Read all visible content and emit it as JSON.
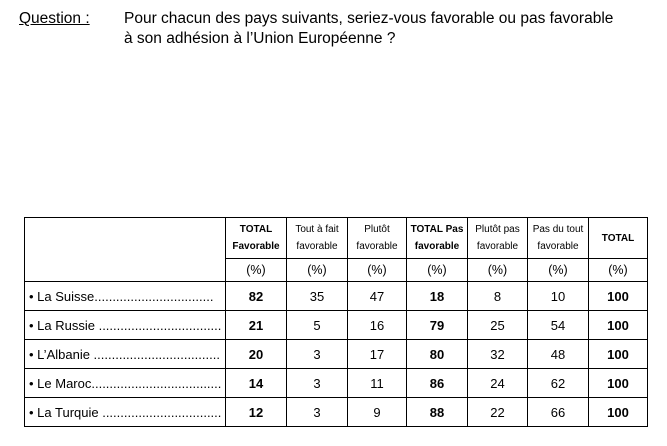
{
  "question": {
    "label": "Question :",
    "line1": "Pour chacun des pays suivants, seriez-vous favorable ou pas favorable",
    "line2": "à son adhésion à l’Union Européenne ?"
  },
  "table": {
    "columns": [
      {
        "line1": "TOTAL",
        "line2": "Favorable",
        "unit": "(%)",
        "bold": true
      },
      {
        "line1": "Tout à fait",
        "line2": "favorable",
        "unit": "(%)",
        "bold": false
      },
      {
        "line1": "Plutôt",
        "line2": "favorable",
        "unit": "(%)",
        "bold": false
      },
      {
        "line1": "TOTAL Pas",
        "line2": "favorable",
        "unit": "(%)",
        "bold": true
      },
      {
        "line1": "Plutôt pas",
        "line2": "favorable",
        "unit": "(%)",
        "bold": false
      },
      {
        "line1": "Pas du tout",
        "line2": "favorable",
        "unit": "(%)",
        "bold": false
      },
      {
        "line1": "TOTAL",
        "line2": "",
        "unit": "(%)",
        "bold": true
      }
    ],
    "rows": [
      {
        "label": "• La Suisse.................................",
        "values": [
          "82",
          "35",
          "47",
          "18",
          "8",
          "10",
          "100"
        ]
      },
      {
        "label": "• La Russie ..................................",
        "values": [
          "21",
          "5",
          "16",
          "79",
          "25",
          "54",
          "100"
        ]
      },
      {
        "label": "• L’Albanie ...................................",
        "values": [
          "20",
          "3",
          "17",
          "80",
          "32",
          "48",
          "100"
        ]
      },
      {
        "label": "• Le Maroc....................................",
        "values": [
          "14",
          "3",
          "11",
          "86",
          "24",
          "62",
          "100"
        ]
      },
      {
        "label": "• La Turquie .................................",
        "values": [
          "12",
          "3",
          "9",
          "88",
          "22",
          "66",
          "100"
        ]
      }
    ]
  }
}
